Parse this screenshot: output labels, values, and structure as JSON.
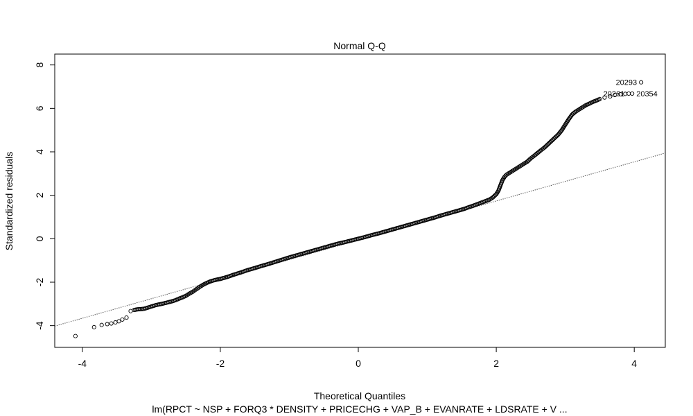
{
  "chart_data": {
    "type": "scatter",
    "title": "Normal Q-Q",
    "xlabel": "Theoretical Quantiles",
    "ylabel": "Standardized residuals",
    "subtitle": "lm(RPCT ~ NSP + FORQ3 * DENSITY + PRICECHG + VAP_B + EVANRATE + LDSRATE + V ...",
    "xlim": [
      -4.4,
      4.45
    ],
    "ylim": [
      -5.0,
      8.5
    ],
    "x_ticks": [
      -4,
      -2,
      0,
      2,
      4
    ],
    "y_ticks": [
      -4,
      -2,
      0,
      2,
      4,
      6,
      8
    ],
    "x_tick_labels": [
      "-4",
      "-2",
      "0",
      "2",
      "4"
    ],
    "y_tick_labels": [
      "-4",
      "-2",
      "0",
      "2",
      "4",
      "6",
      "8"
    ],
    "grid": false,
    "reference_line": {
      "style": "dotted",
      "intercept": -0.06,
      "slope": 0.9
    },
    "series": [
      {
        "points": [
          [
            -4.1,
            -4.48
          ],
          [
            -3.83,
            -4.07
          ],
          [
            -3.72,
            -3.97
          ],
          [
            -3.64,
            -3.93
          ],
          [
            -3.58,
            -3.9
          ],
          [
            -3.52,
            -3.85
          ],
          [
            -3.47,
            -3.8
          ],
          [
            -3.42,
            -3.72
          ],
          [
            -3.36,
            -3.63
          ],
          [
            -3.3,
            -3.33
          ],
          [
            -3.25,
            -3.28
          ],
          [
            -3.2,
            -3.25
          ],
          [
            -3.15,
            -3.24
          ],
          [
            -3.1,
            -3.22
          ],
          [
            -3.05,
            -3.17
          ],
          [
            -3.0,
            -3.12
          ],
          [
            -2.95,
            -3.07
          ],
          [
            -2.9,
            -3.03
          ],
          [
            -2.85,
            -3.0
          ],
          [
            -2.8,
            -2.96
          ],
          [
            -2.75,
            -2.92
          ],
          [
            -2.7,
            -2.88
          ],
          [
            -2.65,
            -2.83
          ],
          [
            -2.6,
            -2.76
          ],
          [
            -2.55,
            -2.7
          ],
          [
            -2.5,
            -2.63
          ],
          [
            -2.45,
            -2.53
          ],
          [
            -2.4,
            -2.44
          ],
          [
            -2.35,
            -2.33
          ],
          [
            -2.3,
            -2.22
          ],
          [
            -2.25,
            -2.12
          ],
          [
            -2.2,
            -2.04
          ],
          [
            -2.15,
            -1.97
          ],
          [
            -2.1,
            -1.92
          ],
          [
            -2.05,
            -1.88
          ],
          [
            -2.0,
            -1.85
          ],
          [
            -1.9,
            -1.76
          ],
          [
            -1.8,
            -1.65
          ],
          [
            -1.7,
            -1.55
          ],
          [
            -1.6,
            -1.44
          ],
          [
            -1.5,
            -1.35
          ],
          [
            -1.4,
            -1.25
          ],
          [
            -1.3,
            -1.16
          ],
          [
            -1.2,
            -1.06
          ],
          [
            -1.1,
            -0.96
          ],
          [
            -1.0,
            -0.86
          ],
          [
            -0.9,
            -0.77
          ],
          [
            -0.8,
            -0.68
          ],
          [
            -0.7,
            -0.59
          ],
          [
            -0.6,
            -0.5
          ],
          [
            -0.5,
            -0.41
          ],
          [
            -0.4,
            -0.32
          ],
          [
            -0.3,
            -0.23
          ],
          [
            -0.2,
            -0.16
          ],
          [
            -0.1,
            -0.08
          ],
          [
            0.0,
            0.0
          ],
          [
            0.1,
            0.08
          ],
          [
            0.2,
            0.17
          ],
          [
            0.3,
            0.25
          ],
          [
            0.4,
            0.34
          ],
          [
            0.5,
            0.43
          ],
          [
            0.6,
            0.52
          ],
          [
            0.7,
            0.61
          ],
          [
            0.8,
            0.7
          ],
          [
            0.9,
            0.79
          ],
          [
            1.0,
            0.88
          ],
          [
            1.1,
            0.97
          ],
          [
            1.2,
            1.07
          ],
          [
            1.3,
            1.16
          ],
          [
            1.4,
            1.25
          ],
          [
            1.5,
            1.34
          ],
          [
            1.55,
            1.39
          ],
          [
            1.6,
            1.45
          ],
          [
            1.65,
            1.5
          ],
          [
            1.7,
            1.56
          ],
          [
            1.75,
            1.62
          ],
          [
            1.8,
            1.68
          ],
          [
            1.85,
            1.74
          ],
          [
            1.9,
            1.8
          ],
          [
            1.95,
            1.9
          ],
          [
            2.0,
            2.05
          ],
          [
            2.03,
            2.2
          ],
          [
            2.06,
            2.45
          ],
          [
            2.09,
            2.7
          ],
          [
            2.12,
            2.85
          ],
          [
            2.15,
            2.95
          ],
          [
            2.2,
            3.05
          ],
          [
            2.25,
            3.15
          ],
          [
            2.3,
            3.25
          ],
          [
            2.35,
            3.35
          ],
          [
            2.4,
            3.45
          ],
          [
            2.45,
            3.55
          ],
          [
            2.5,
            3.7
          ],
          [
            2.55,
            3.82
          ],
          [
            2.6,
            3.95
          ],
          [
            2.65,
            4.08
          ],
          [
            2.7,
            4.2
          ],
          [
            2.75,
            4.35
          ],
          [
            2.8,
            4.5
          ],
          [
            2.85,
            4.65
          ],
          [
            2.9,
            4.8
          ],
          [
            2.95,
            5.0
          ],
          [
            3.0,
            5.25
          ],
          [
            3.05,
            5.5
          ],
          [
            3.1,
            5.72
          ],
          [
            3.15,
            5.85
          ],
          [
            3.2,
            5.95
          ],
          [
            3.25,
            6.05
          ],
          [
            3.3,
            6.15
          ],
          [
            3.35,
            6.22
          ],
          [
            3.4,
            6.3
          ],
          [
            3.45,
            6.36
          ],
          [
            3.5,
            6.43
          ],
          [
            3.57,
            6.5
          ],
          [
            3.65,
            6.55
          ],
          [
            3.72,
            6.62
          ],
          [
            3.8,
            6.65
          ],
          [
            3.87,
            6.67
          ],
          [
            3.92,
            6.68
          ],
          [
            3.97,
            6.68
          ],
          [
            4.1,
            7.2
          ]
        ]
      }
    ],
    "point_labels": [
      {
        "text": "20293",
        "x": 4.1,
        "y": 7.2,
        "pos": "left"
      },
      {
        "text": "20261",
        "x": 3.92,
        "y": 6.68,
        "pos": "left"
      },
      {
        "text": "20354",
        "x": 3.97,
        "y": 6.68,
        "pos": "right"
      }
    ]
  }
}
